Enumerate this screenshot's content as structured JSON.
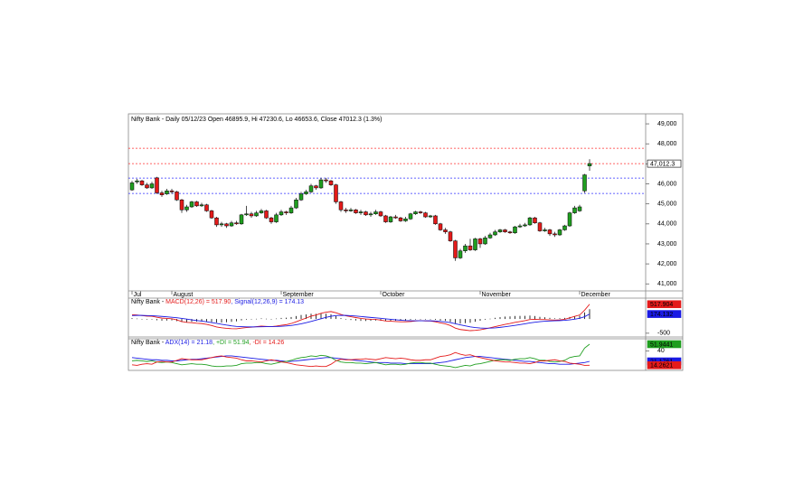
{
  "chart_data": [
    {
      "type": "candlestick",
      "title": "Nifty Bank - Daily 05/12/23 Open 46895.9, Hi 47230.6, Lo 46653.6, Close 47012.3 (1.3%)",
      "categories": [
        "Jul",
        null,
        null,
        null,
        null,
        null,
        null,
        null,
        "August",
        null,
        null,
        null,
        null,
        null,
        null,
        null,
        null,
        null,
        null,
        null,
        null,
        null,
        null,
        null,
        null,
        null,
        null,
        null,
        null,
        null,
        "September",
        null,
        null,
        null,
        null,
        null,
        null,
        null,
        null,
        null,
        null,
        null,
        null,
        null,
        null,
        null,
        null,
        null,
        null,
        null,
        "October",
        null,
        null,
        null,
        null,
        null,
        null,
        null,
        null,
        null,
        null,
        null,
        null,
        null,
        null,
        null,
        null,
        null,
        null,
        null,
        "November",
        null,
        null,
        null,
        null,
        null,
        null,
        null,
        null,
        null,
        null,
        null,
        null,
        null,
        null,
        null,
        null,
        null,
        null,
        null,
        "December",
        null,
        null
      ],
      "open": [
        45700,
        46100,
        46150,
        45950,
        45800,
        46300,
        45550,
        45500,
        45650,
        45600,
        45200,
        44700,
        44850,
        45100,
        44900,
        44950,
        44650,
        44300,
        43950,
        44000,
        43900,
        44050,
        44000,
        44450,
        44500,
        44400,
        44550,
        44650,
        44300,
        44100,
        44450,
        44600,
        44550,
        44800,
        45200,
        45500,
        45600,
        45900,
        45800,
        46200,
        46150,
        45950,
        45100,
        44700,
        44650,
        44700,
        44550,
        44600,
        44450,
        44500,
        44600,
        44400,
        44100,
        44350,
        44300,
        44150,
        44250,
        44500,
        44600,
        44550,
        44350,
        44400,
        44000,
        43700,
        43600,
        43150,
        42300,
        42650,
        42900,
        42700,
        43250,
        43000,
        43300,
        43450,
        43600,
        43700,
        43600,
        43550,
        43850,
        43900,
        43950,
        44300,
        44050,
        43650,
        43700,
        43500,
        43450,
        43700,
        43900,
        44550,
        44650,
        45650,
        46895.9
      ],
      "high": [
        46150,
        46250,
        46200,
        46050,
        46100,
        46350,
        45650,
        45750,
        45750,
        45650,
        45250,
        44950,
        45150,
        45150,
        45050,
        45000,
        44700,
        44350,
        44100,
        44050,
        44150,
        44150,
        44500,
        44900,
        44600,
        44650,
        44750,
        44700,
        44350,
        44550,
        44700,
        44650,
        44900,
        45300,
        45600,
        45700,
        46000,
        45950,
        46300,
        46300,
        46200,
        46000,
        45150,
        44800,
        44800,
        44750,
        44700,
        44650,
        44600,
        44700,
        44650,
        44450,
        44400,
        44450,
        44350,
        44350,
        44550,
        44650,
        44650,
        44600,
        44450,
        44450,
        44050,
        43800,
        43650,
        43200,
        42750,
        43000,
        43250,
        43300,
        43300,
        43400,
        43550,
        43700,
        43750,
        43750,
        43650,
        43900,
        44000,
        44050,
        44350,
        44350,
        44100,
        43800,
        43750,
        43600,
        43750,
        43950,
        44600,
        44900,
        44950,
        46500,
        47230.6
      ],
      "low": [
        45650,
        46000,
        45900,
        45750,
        45750,
        45500,
        45350,
        45450,
        45500,
        45150,
        44550,
        44600,
        44800,
        44850,
        44850,
        44600,
        44250,
        43850,
        43850,
        43800,
        43850,
        43950,
        43950,
        44400,
        44300,
        44350,
        44500,
        44250,
        44000,
        44050,
        44400,
        44450,
        44500,
        44750,
        45150,
        45450,
        45550,
        45700,
        45750,
        46050,
        45900,
        45000,
        44600,
        44550,
        44600,
        44500,
        44450,
        44400,
        44350,
        44450,
        44350,
        44050,
        44050,
        44250,
        44100,
        44100,
        44200,
        44450,
        44500,
        44300,
        44300,
        43950,
        43650,
        43500,
        43100,
        42150,
        42250,
        42550,
        42650,
        42650,
        42800,
        42950,
        43250,
        43400,
        43550,
        43550,
        43500,
        43500,
        43800,
        43850,
        43900,
        44000,
        43600,
        43600,
        43400,
        43350,
        43400,
        43650,
        43850,
        44500,
        44600,
        45550,
        46653.6
      ],
      "close": [
        46050,
        46150,
        45950,
        45800,
        46000,
        45550,
        45450,
        45650,
        45600,
        45200,
        44700,
        44850,
        45100,
        44900,
        44950,
        44650,
        44300,
        43950,
        44000,
        43900,
        44050,
        44000,
        44450,
        44500,
        44400,
        44550,
        44650,
        44300,
        44100,
        44450,
        44600,
        44550,
        44800,
        45200,
        45500,
        45600,
        45900,
        45800,
        46200,
        46150,
        45950,
        45100,
        44700,
        44650,
        44700,
        44550,
        44600,
        44450,
        44500,
        44600,
        44400,
        44100,
        44350,
        44300,
        44150,
        44250,
        44500,
        44600,
        44550,
        44350,
        44400,
        44000,
        43700,
        43600,
        43150,
        42300,
        42650,
        42900,
        42700,
        43250,
        43000,
        43300,
        43450,
        43600,
        43700,
        43600,
        43550,
        43850,
        43900,
        43950,
        44300,
        44050,
        43650,
        43700,
        43500,
        43450,
        43700,
        43900,
        44550,
        44800,
        44850,
        46450,
        47012.3
      ],
      "close_label": "47,012.3",
      "up_color": "#1f9e1f",
      "down_color": "#e41a1a",
      "levels": [
        {
          "value": 47780,
          "color": "#ff3030"
        },
        {
          "value": 47010,
          "color": "#ff3030"
        },
        {
          "value": 46290,
          "color": "#3030ff"
        },
        {
          "value": 45520,
          "color": "#3030ff"
        }
      ],
      "ylim": [
        40650,
        49500
      ],
      "yticks": [
        {
          "value": 41000,
          "label": "41,000"
        },
        {
          "value": 42000,
          "label": "42,000"
        },
        {
          "value": 43000,
          "label": "43,000"
        },
        {
          "value": 44000,
          "label": "44,000"
        },
        {
          "value": 45000,
          "label": "45,000"
        },
        {
          "value": 46000,
          "label": "46,000"
        },
        {
          "value": 47000,
          "label": "47,000"
        },
        {
          "value": 48000,
          "label": "48,000"
        },
        {
          "value": 49000,
          "label": "49,000"
        }
      ]
    },
    {
      "type": "macd",
      "title_parts": [
        {
          "text": "Nifty Bank - ",
          "color": "#000000"
        },
        {
          "text": "MACD(12,26) = 517.90",
          "color": "#e41a1a"
        },
        {
          "text": ", Signal(12,26,9) = 174.13",
          "color": "#1a1ae4"
        }
      ],
      "histogram": {
        "color": "#000000",
        "values": [
          30,
          15,
          -5,
          -20,
          -20,
          -45,
          -60,
          -55,
          -50,
          -75,
          -110,
          -115,
          -100,
          -95,
          -85,
          -90,
          -105,
          -125,
          -125,
          -115,
          -100,
          -85,
          -50,
          -24,
          -11,
          7,
          22,
          10,
          0,
          16,
          37,
          45,
          68,
          103,
          140,
          160,
          185,
          180,
          192,
          185,
          165,
          100,
          32,
          -15,
          -36,
          -53,
          -67,
          -70,
          -64,
          -55,
          -64,
          -75,
          -68,
          -62,
          -58,
          -46,
          -29,
          -7,
          2,
          -6,
          -5,
          -28,
          -54,
          -67,
          -102,
          -153,
          -163,
          -147,
          -133,
          -98,
          -63,
          -26,
          11,
          41,
          65,
          84,
          91,
          105,
          108,
          110,
          120,
          104,
          75,
          60,
          40,
          24,
          27,
          38,
          70,
          96,
          117,
          230,
          343.77
        ]
      },
      "series": [
        {
          "color": "#e41a1a",
          "value_label": "517.904",
          "values": [
            150,
            140,
            120,
            100,
            95,
            60,
            30,
            20,
            10,
            -30,
            -90,
            -120,
            -130,
            -150,
            -160,
            -190,
            -230,
            -280,
            -310,
            -330,
            -340,
            -345,
            -320,
            -300,
            -290,
            -270,
            -250,
            -260,
            -270,
            -250,
            -220,
            -200,
            -160,
            -100,
            -30,
            30,
            100,
            140,
            200,
            240,
            260,
            220,
            160,
            110,
            80,
            50,
            20,
            0,
            -10,
            -15,
            -40,
            -70,
            -80,
            -90,
            -100,
            -100,
            -90,
            -70,
            -60,
            -70,
            -70,
            -100,
            -140,
            -170,
            -230,
            -320,
            -370,
            -390,
            -410,
            -400,
            -380,
            -350,
            -310,
            -270,
            -230,
            -190,
            -160,
            -120,
            -90,
            -60,
            -20,
            -10,
            -20,
            -20,
            -30,
            -40,
            -30,
            -10,
            40,
            90,
            140,
            310,
            517.904
          ]
        },
        {
          "color": "#1a1ae4",
          "value_label": "174.132",
          "values": [
            120,
            125,
            125,
            120,
            115,
            105,
            90,
            75,
            60,
            45,
            20,
            -5,
            -30,
            -55,
            -75,
            -100,
            -125,
            -155,
            -185,
            -215,
            -240,
            -260,
            -270,
            -276,
            -279,
            -277,
            -272,
            -270,
            -270,
            -266,
            -257,
            -245,
            -228,
            -203,
            -170,
            -130,
            -85,
            -40,
            8,
            55,
            95,
            120,
            128,
            125,
            116,
            103,
            87,
            70,
            54,
            40,
            24,
            5,
            -12,
            -28,
            -42,
            -54,
            -61,
            -63,
            -62,
            -64,
            -65,
            -72,
            -86,
            -103,
            -128,
            -167,
            -207,
            -243,
            -277,
            -302,
            -317,
            -324,
            -321,
            -311,
            -295,
            -274,
            -251,
            -225,
            -198,
            -170,
            -140,
            -114,
            -95,
            -80,
            -70,
            -64,
            -57,
            -48,
            -30,
            -6,
            23,
            80,
            174.132
          ]
        }
      ],
      "ylim": [
        -600,
        700
      ],
      "yticks": [
        -500
      ]
    },
    {
      "type": "adx",
      "title_parts": [
        {
          "text": "Nifty Bank - ",
          "color": "#000000"
        },
        {
          "text": "ADX(14) = 21.18",
          "color": "#1a1ae4"
        },
        {
          "text": ", +DI = 51.94",
          "color": "#1f9e1f"
        },
        {
          "text": ", -DI = 14.26",
          "color": "#e41a1a"
        }
      ],
      "series": [
        {
          "color": "#1a1ae4",
          "value_label": "21.1761",
          "values": [
            28,
            27,
            26,
            25,
            24,
            24,
            23,
            23,
            22,
            22,
            23,
            24,
            25,
            25,
            26,
            27,
            28,
            29,
            30,
            31,
            31,
            30,
            29,
            28,
            27,
            26,
            25,
            24,
            23,
            23,
            22,
            21,
            21,
            22,
            23,
            24,
            25,
            26,
            27,
            28,
            28,
            27,
            26,
            25,
            24,
            23,
            22,
            21,
            20,
            19,
            19,
            19,
            18,
            18,
            18,
            17,
            17,
            17,
            17,
            17,
            17,
            18,
            19,
            20,
            22,
            24,
            26,
            28,
            29,
            30,
            30,
            29,
            28,
            27,
            26,
            25,
            24,
            23,
            22,
            21,
            21,
            20,
            19,
            18,
            17,
            17,
            16,
            16,
            16,
            17,
            18,
            19,
            21.1761
          ]
        },
        {
          "color": "#1f9e1f",
          "value_label": "51.9441",
          "values": [
            22,
            23,
            22,
            21,
            22,
            20,
            19,
            20,
            19,
            17,
            15,
            16,
            17,
            16,
            16,
            15,
            13,
            12,
            12,
            13,
            13,
            14,
            17,
            18,
            18,
            19,
            19,
            17,
            16,
            18,
            20,
            21,
            23,
            26,
            28,
            29,
            31,
            30,
            32,
            31,
            28,
            23,
            20,
            19,
            19,
            18,
            18,
            17,
            18,
            19,
            17,
            15,
            16,
            16,
            15,
            16,
            18,
            19,
            19,
            18,
            18,
            16,
            14,
            13,
            12,
            10,
            12,
            14,
            13,
            16,
            17,
            19,
            21,
            23,
            24,
            24,
            23,
            25,
            26,
            26,
            28,
            26,
            23,
            23,
            21,
            20,
            21,
            23,
            28,
            30,
            31,
            45,
            51.9441
          ]
        },
        {
          "color": "#e41a1a",
          "value_label": "14.2621",
          "values": [
            15,
            14,
            16,
            17,
            16,
            20,
            21,
            20,
            20,
            23,
            26,
            25,
            24,
            24,
            24,
            26,
            28,
            30,
            31,
            29,
            28,
            27,
            24,
            22,
            22,
            21,
            20,
            22,
            24,
            22,
            20,
            19,
            17,
            15,
            14,
            13,
            12,
            13,
            12,
            12,
            16,
            22,
            25,
            24,
            24,
            25,
            25,
            26,
            25,
            24,
            26,
            28,
            27,
            26,
            27,
            26,
            24,
            23,
            23,
            24,
            24,
            27,
            30,
            31,
            33,
            37,
            34,
            32,
            33,
            30,
            28,
            26,
            24,
            22,
            21,
            20,
            20,
            19,
            18,
            18,
            17,
            19,
            22,
            22,
            23,
            24,
            22,
            21,
            18,
            17,
            16,
            14,
            14.2621
          ]
        }
      ],
      "ylim": [
        5,
        60
      ],
      "yticks": [
        40
      ]
    }
  ]
}
